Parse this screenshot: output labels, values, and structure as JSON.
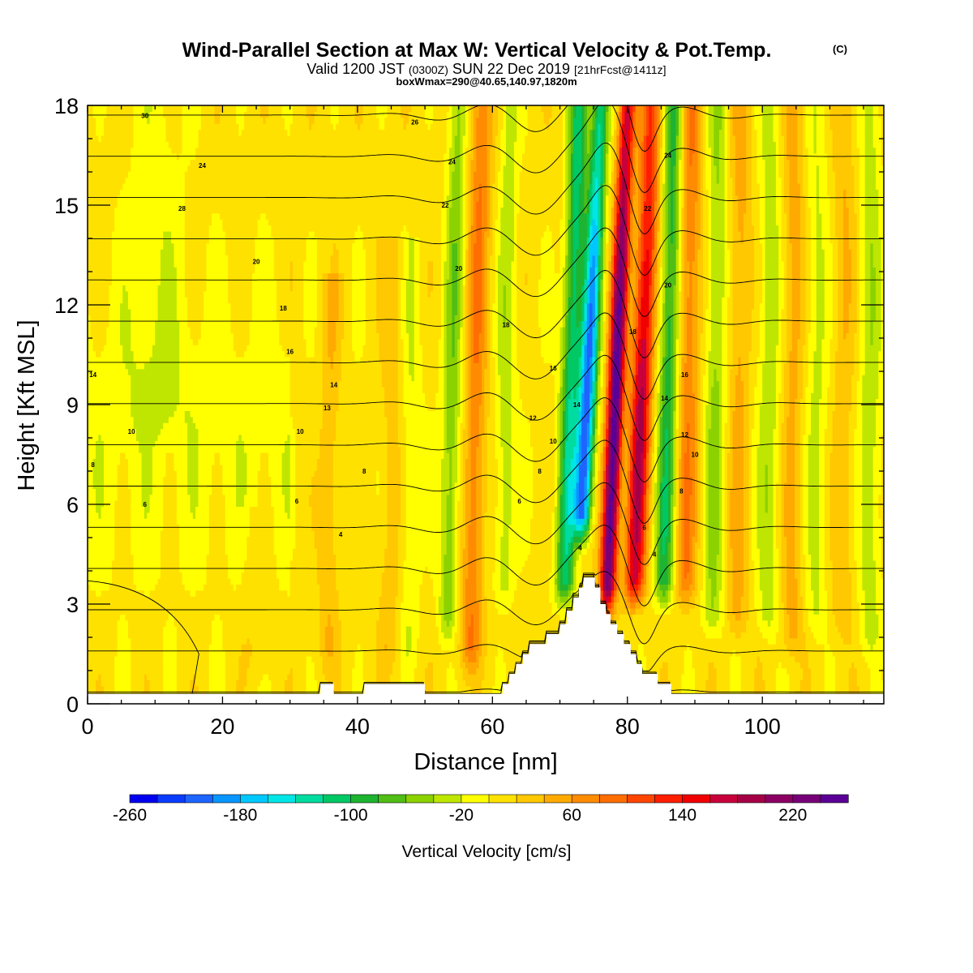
{
  "title": {
    "main": "Wind-Parallel Section at Max W: Vertical Velocity & Pot.Temp.",
    "copyright": "(C)",
    "valid_prefix": "Valid 1200 JST",
    "valid_utc": "(0300Z)",
    "valid_date": "SUN 22 Dec 2019",
    "forecast": "[21hrFcst@1411z]",
    "boxmax": "boxWmax=290@40.65,140.97,1820m"
  },
  "chart_data": {
    "type": "heatmap",
    "xlabel": "Distance [nm]",
    "ylabel": "Height [Kft MSL]",
    "xlim": [
      0,
      118
    ],
    "ylim": [
      0,
      18
    ],
    "x_ticks": [
      0,
      20,
      40,
      60,
      80,
      100
    ],
    "y_ticks": [
      0,
      3,
      6,
      9,
      12,
      15,
      18
    ],
    "colorbar": {
      "label": "Vertical Velocity [cm/s]",
      "min": -260,
      "max": 260,
      "step": 20,
      "tick_labels": [
        "-260",
        "-180",
        "-100",
        "-20",
        "60",
        "140",
        "220"
      ],
      "colors": [
        "#0000f0",
        "#0a3cff",
        "#1e64ff",
        "#0a96ff",
        "#00c8ff",
        "#00e6e6",
        "#00dca0",
        "#00c864",
        "#1eb432",
        "#50be14",
        "#8cd200",
        "#bee600",
        "#ffff00",
        "#ffe100",
        "#ffc800",
        "#ffaa00",
        "#ff8c00",
        "#ff6e00",
        "#ff4600",
        "#ff1e00",
        "#f00000",
        "#c8003c",
        "#a50046",
        "#8c0064",
        "#780078",
        "#5a0096"
      ]
    },
    "w_features": [
      {
        "x": 74.0,
        "z_bottom": 4.5,
        "z_top": 18,
        "slope": 0.22,
        "width": 1.3,
        "w": -220
      },
      {
        "x": 78.2,
        "z_bottom": 2.3,
        "z_top": 18,
        "slope": 0.2,
        "width": 1.2,
        "w": 260
      },
      {
        "x": 82.0,
        "z_bottom": 2.5,
        "z_top": 18,
        "slope": 0.18,
        "width": 1.5,
        "w": 180
      },
      {
        "x": 71.5,
        "z_bottom": 2.5,
        "z_top": 18,
        "slope": 0.15,
        "width": 1.4,
        "w": -120
      },
      {
        "x": 86.0,
        "z_bottom": 2.5,
        "z_top": 18,
        "slope": 0.1,
        "width": 1.4,
        "w": -100
      },
      {
        "x": 57.5,
        "z_bottom": 0.5,
        "z_top": 18,
        "slope": 0.1,
        "width": 1.6,
        "w": 70
      },
      {
        "x": 54.0,
        "z_bottom": 1.5,
        "z_top": 18,
        "slope": 0.1,
        "width": 1.4,
        "w": -60
      },
      {
        "x": 62.0,
        "z_bottom": 2.5,
        "z_top": 18,
        "slope": 0.06,
        "width": 1.4,
        "w": -40
      },
      {
        "x": 89.0,
        "z_bottom": 2.5,
        "z_top": 18,
        "slope": 0.06,
        "width": 1.6,
        "w": 70
      },
      {
        "x": 93.0,
        "z_bottom": 1.5,
        "z_top": 18,
        "slope": 0.05,
        "width": 1.5,
        "w": -50
      },
      {
        "x": 96.5,
        "z_bottom": 1.5,
        "z_top": 18,
        "slope": 0.04,
        "width": 1.5,
        "w": 40
      },
      {
        "x": 101.0,
        "z_bottom": 1.5,
        "z_top": 18,
        "slope": 0.03,
        "width": 1.6,
        "w": -40
      },
      {
        "x": 104.5,
        "z_bottom": 1.0,
        "z_top": 18,
        "slope": 0.02,
        "width": 1.6,
        "w": 40
      },
      {
        "x": 108.0,
        "z_bottom": 1.5,
        "z_top": 18,
        "slope": 0.02,
        "width": 1.6,
        "w": -30
      },
      {
        "x": 112.0,
        "z_bottom": 1.5,
        "z_top": 18,
        "slope": 0.02,
        "width": 1.6,
        "w": 30
      },
      {
        "x": 116.0,
        "z_bottom": 1.0,
        "z_top": 18,
        "slope": 0.01,
        "width": 1.6,
        "w": -40
      },
      {
        "x": 36.0,
        "z_bottom": 0.5,
        "z_top": 13,
        "slope": 0.05,
        "width": 1.5,
        "w": 30
      },
      {
        "x": 45.0,
        "z_bottom": 0.5,
        "z_top": 14,
        "slope": 0.05,
        "width": 1.6,
        "w": 25
      },
      {
        "x": 48.0,
        "z_bottom": 0.5,
        "z_top": 14,
        "slope": 0.05,
        "width": 1.4,
        "w": -25
      },
      {
        "x": 25.0,
        "z_bottom": 0.3,
        "z_top": 6,
        "slope": 0.0,
        "width": 2.0,
        "w": 15
      },
      {
        "x": 10.0,
        "z_bottom": 7.5,
        "z_top": 18,
        "slope": 0.0,
        "width": 4.5,
        "w": -20
      }
    ],
    "terrain": [
      [
        0,
        0.3
      ],
      [
        34.5,
        0.3
      ],
      [
        34.5,
        0.6
      ],
      [
        36.5,
        0.6
      ],
      [
        36.5,
        0.3
      ],
      [
        41,
        0.3
      ],
      [
        41,
        0.6
      ],
      [
        50,
        0.6
      ],
      [
        50,
        0.3
      ],
      [
        61.5,
        0.3
      ],
      [
        61.5,
        0.6
      ],
      [
        62.5,
        0.6
      ],
      [
        62.5,
        0.9
      ],
      [
        63.5,
        0.9
      ],
      [
        63.5,
        1.2
      ],
      [
        64.5,
        1.2
      ],
      [
        64.5,
        1.5
      ],
      [
        65.5,
        1.5
      ],
      [
        65.5,
        1.8
      ],
      [
        68,
        1.8
      ],
      [
        68,
        2.1
      ],
      [
        70,
        2.1
      ],
      [
        70,
        2.4
      ],
      [
        71,
        2.4
      ],
      [
        71,
        2.8
      ],
      [
        72,
        2.8
      ],
      [
        72,
        3.2
      ],
      [
        72.8,
        3.2
      ],
      [
        72.8,
        3.5
      ],
      [
        73.5,
        3.5
      ],
      [
        73.5,
        3.8
      ],
      [
        75.2,
        3.8
      ],
      [
        75.2,
        3.5
      ],
      [
        76,
        3.5
      ],
      [
        76,
        3.0
      ],
      [
        76.8,
        3.0
      ],
      [
        76.8,
        2.7
      ],
      [
        77.5,
        2.7
      ],
      [
        77.5,
        2.4
      ],
      [
        78.5,
        2.4
      ],
      [
        78.5,
        2.1
      ],
      [
        79.5,
        2.1
      ],
      [
        79.5,
        1.8
      ],
      [
        80.5,
        1.8
      ],
      [
        80.5,
        1.5
      ],
      [
        81.3,
        1.5
      ],
      [
        81.3,
        1.2
      ],
      [
        82.2,
        1.2
      ],
      [
        82.2,
        0.9
      ],
      [
        84.5,
        0.9
      ],
      [
        84.5,
        0.6
      ],
      [
        86.5,
        0.6
      ],
      [
        86.5,
        0.3
      ],
      [
        118,
        0.3
      ]
    ],
    "theta_contours": {
      "levels": [
        -2,
        0,
        2,
        4,
        6,
        8,
        10,
        12,
        14,
        16,
        18,
        20,
        22,
        24,
        26,
        28
      ],
      "labels": [
        {
          "x": 0.8,
          "z": 7.2,
          "text": "8"
        },
        {
          "x": 6.5,
          "z": 8.2,
          "text": "10"
        },
        {
          "x": 0.8,
          "z": 9.9,
          "text": "14"
        },
        {
          "x": 8.5,
          "z": 6.0,
          "text": "6"
        },
        {
          "x": 8.5,
          "z": 17.7,
          "text": "30"
        },
        {
          "x": 17.0,
          "z": 16.2,
          "text": "24"
        },
        {
          "x": 14.0,
          "z": 14.9,
          "text": "28"
        },
        {
          "x": 25.0,
          "z": 13.3,
          "text": "20"
        },
        {
          "x": 29.0,
          "z": 11.9,
          "text": "18"
        },
        {
          "x": 30.0,
          "z": 10.6,
          "text": "16"
        },
        {
          "x": 31.5,
          "z": 8.2,
          "text": "10"
        },
        {
          "x": 31.0,
          "z": 6.1,
          "text": "6"
        },
        {
          "x": 36.5,
          "z": 9.6,
          "text": "14"
        },
        {
          "x": 35.5,
          "z": 8.9,
          "text": "13"
        },
        {
          "x": 41.0,
          "z": 7.0,
          "text": "8"
        },
        {
          "x": 37.5,
          "z": 5.1,
          "text": "4"
        },
        {
          "x": 48.5,
          "z": 17.5,
          "text": "26"
        },
        {
          "x": 54.0,
          "z": 16.3,
          "text": "24"
        },
        {
          "x": 53.0,
          "z": 15.0,
          "text": "22"
        },
        {
          "x": 55.0,
          "z": 13.1,
          "text": "20"
        },
        {
          "x": 62.0,
          "z": 11.4,
          "text": "18"
        },
        {
          "x": 69.0,
          "z": 10.1,
          "text": "16"
        },
        {
          "x": 66.0,
          "z": 8.6,
          "text": "12"
        },
        {
          "x": 69.0,
          "z": 7.9,
          "text": "10"
        },
        {
          "x": 67.0,
          "z": 7.0,
          "text": "8"
        },
        {
          "x": 64.0,
          "z": 6.1,
          "text": "6"
        },
        {
          "x": 73.0,
          "z": 4.7,
          "text": "4"
        },
        {
          "x": 72.5,
          "z": 9.0,
          "text": "14"
        },
        {
          "x": 80.8,
          "z": 11.2,
          "text": "18"
        },
        {
          "x": 86.0,
          "z": 16.5,
          "text": "24"
        },
        {
          "x": 83.0,
          "z": 14.9,
          "text": "22"
        },
        {
          "x": 86.0,
          "z": 12.6,
          "text": "20"
        },
        {
          "x": 88.5,
          "z": 9.9,
          "text": "16"
        },
        {
          "x": 85.5,
          "z": 9.2,
          "text": "14"
        },
        {
          "x": 88.5,
          "z": 8.1,
          "text": "12"
        },
        {
          "x": 90.0,
          "z": 7.5,
          "text": "10"
        },
        {
          "x": 88.0,
          "z": 6.4,
          "text": "8"
        },
        {
          "x": 82.5,
          "z": 5.3,
          "text": "6"
        },
        {
          "x": 84.0,
          "z": 4.5,
          "text": "4"
        }
      ]
    }
  }
}
